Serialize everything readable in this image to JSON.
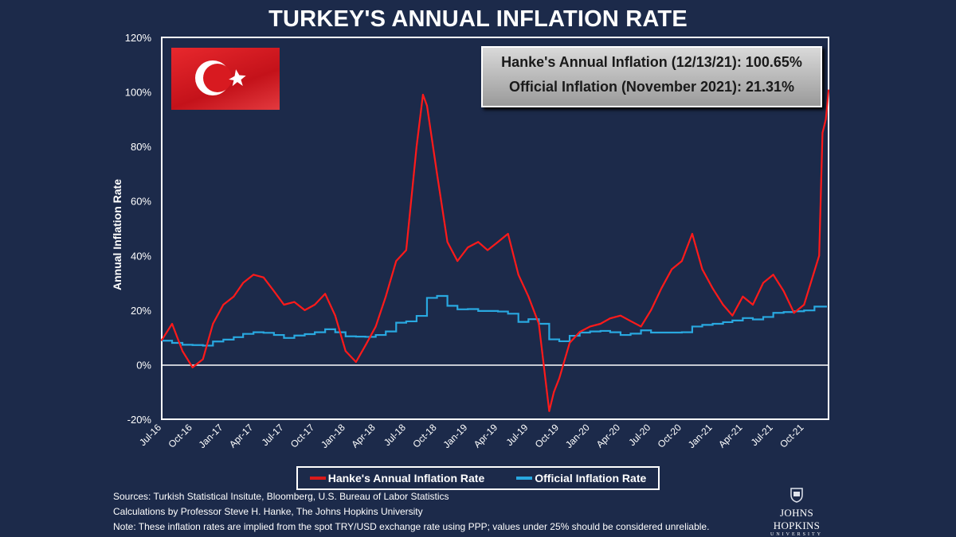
{
  "chart_data": {
    "type": "line",
    "title": "TURKEY'S ANNUAL INFLATION RATE",
    "xlabel": "",
    "ylabel": "Annual Inflation Rate",
    "ylim": [
      -20,
      120
    ],
    "xlim": [
      "2016-07-01",
      "2021-12-13"
    ],
    "y_ticks": [
      "-20%",
      "0%",
      "20%",
      "40%",
      "60%",
      "80%",
      "100%",
      "120%"
    ],
    "y_tick_values": [
      -20,
      0,
      20,
      40,
      60,
      80,
      100,
      120
    ],
    "x_ticks": [
      "Jul-16",
      "Oct-16",
      "Jan-17",
      "Apr-17",
      "Jul-17",
      "Oct-17",
      "Jan-18",
      "Apr-18",
      "Jul-18",
      "Oct-18",
      "Jan-19",
      "Apr-19",
      "Jul-19",
      "Oct-19",
      "Jan-20",
      "Apr-20",
      "Jul-20",
      "Oct-20",
      "Jan-21",
      "Apr-21",
      "Jul-21",
      "Oct-21"
    ],
    "x_tick_dates": [
      "2016-07-01",
      "2016-10-01",
      "2017-01-01",
      "2017-04-01",
      "2017-07-01",
      "2017-10-01",
      "2018-01-01",
      "2018-04-01",
      "2018-07-01",
      "2018-10-01",
      "2019-01-01",
      "2019-04-01",
      "2019-07-01",
      "2019-10-01",
      "2020-01-01",
      "2020-04-01",
      "2020-07-01",
      "2020-10-01",
      "2021-01-01",
      "2021-04-01",
      "2021-07-01",
      "2021-10-01"
    ],
    "grid": false,
    "legend_placement": "bottom",
    "series": [
      {
        "name": "Hanke's Annual Inflation Rate",
        "color": "#ff1a1a",
        "x": [
          "2016-07-01",
          "2016-08-01",
          "2016-09-01",
          "2016-10-01",
          "2016-11-01",
          "2016-12-01",
          "2017-01-01",
          "2017-02-01",
          "2017-03-01",
          "2017-04-01",
          "2017-05-01",
          "2017-06-01",
          "2017-07-01",
          "2017-08-01",
          "2017-09-01",
          "2017-10-01",
          "2017-11-01",
          "2017-12-01",
          "2018-01-01",
          "2018-02-01",
          "2018-03-01",
          "2018-04-01",
          "2018-05-01",
          "2018-06-01",
          "2018-07-01",
          "2018-08-01",
          "2018-08-20",
          "2018-09-01",
          "2018-10-01",
          "2018-11-01",
          "2018-12-01",
          "2019-01-01",
          "2019-02-01",
          "2019-03-01",
          "2019-04-01",
          "2019-05-01",
          "2019-06-01",
          "2019-07-01",
          "2019-08-01",
          "2019-09-01",
          "2019-09-15",
          "2019-10-01",
          "2019-11-01",
          "2019-12-01",
          "2020-01-01",
          "2020-02-01",
          "2020-03-01",
          "2020-04-01",
          "2020-05-01",
          "2020-06-01",
          "2020-07-01",
          "2020-08-01",
          "2020-09-01",
          "2020-10-01",
          "2020-11-01",
          "2020-12-01",
          "2021-01-01",
          "2021-02-01",
          "2021-03-01",
          "2021-04-01",
          "2021-05-01",
          "2021-06-01",
          "2021-07-01",
          "2021-08-01",
          "2021-09-01",
          "2021-10-01",
          "2021-11-15",
          "2021-11-25",
          "2021-12-05",
          "2021-12-13"
        ],
        "values": [
          9,
          15,
          5,
          -1,
          2,
          15,
          22,
          25,
          30,
          33,
          32,
          27,
          22,
          23,
          20,
          22,
          26,
          18,
          5,
          1,
          7,
          14,
          25,
          38,
          42,
          80,
          99,
          95,
          70,
          45,
          38,
          43,
          45,
          42,
          45,
          48,
          33,
          25,
          15,
          -17,
          -10,
          -5,
          8,
          12,
          14,
          15,
          17,
          18,
          16,
          14,
          20,
          28,
          35,
          38,
          48,
          35,
          28,
          22,
          18,
          25,
          22,
          30,
          33,
          27,
          19,
          22,
          40,
          85,
          90,
          100.65
        ]
      },
      {
        "name": "Official Inflation Rate",
        "color": "#29a8e0",
        "x": [
          "2016-07-01",
          "2016-08-01",
          "2016-09-01",
          "2016-10-01",
          "2016-11-01",
          "2016-12-01",
          "2017-01-01",
          "2017-02-01",
          "2017-03-01",
          "2017-04-01",
          "2017-05-01",
          "2017-06-01",
          "2017-07-01",
          "2017-08-01",
          "2017-09-01",
          "2017-10-01",
          "2017-11-01",
          "2017-12-01",
          "2018-01-01",
          "2018-02-01",
          "2018-03-01",
          "2018-04-01",
          "2018-05-01",
          "2018-06-01",
          "2018-07-01",
          "2018-08-01",
          "2018-09-01",
          "2018-10-01",
          "2018-11-01",
          "2018-12-01",
          "2019-01-01",
          "2019-02-01",
          "2019-03-01",
          "2019-04-01",
          "2019-05-01",
          "2019-06-01",
          "2019-07-01",
          "2019-08-01",
          "2019-09-01",
          "2019-10-01",
          "2019-11-01",
          "2019-12-01",
          "2020-01-01",
          "2020-02-01",
          "2020-03-01",
          "2020-04-01",
          "2020-05-01",
          "2020-06-01",
          "2020-07-01",
          "2020-08-01",
          "2020-09-01",
          "2020-10-01",
          "2020-11-01",
          "2020-12-01",
          "2021-01-01",
          "2021-02-01",
          "2021-03-01",
          "2021-04-01",
          "2021-05-01",
          "2021-06-01",
          "2021-07-01",
          "2021-08-01",
          "2021-09-01",
          "2021-10-01",
          "2021-11-01"
        ],
        "values": [
          8.8,
          8.0,
          7.3,
          7.2,
          7.0,
          8.5,
          9.2,
          10.1,
          11.3,
          11.9,
          11.7,
          10.9,
          9.8,
          10.7,
          11.2,
          11.9,
          13.0,
          11.9,
          10.4,
          10.3,
          10.2,
          10.9,
          12.2,
          15.4,
          15.9,
          17.9,
          24.5,
          25.2,
          21.6,
          20.3,
          20.4,
          19.7,
          19.7,
          19.5,
          18.7,
          15.7,
          16.7,
          15.0,
          9.3,
          8.6,
          10.6,
          11.8,
          12.2,
          12.4,
          11.9,
          10.9,
          11.4,
          12.6,
          11.8,
          11.8,
          11.8,
          11.9,
          14.0,
          14.6,
          15.0,
          15.6,
          16.2,
          17.1,
          16.6,
          17.5,
          19.0,
          19.3,
          19.6,
          19.9,
          21.3
        ]
      }
    ]
  },
  "infobox": {
    "line1": "Hanke's Annual Inflation (12/13/21): 100.65%",
    "line2": "Official Inflation (November 2021): 21.31%"
  },
  "flag": {
    "country": "Turkey",
    "colors": [
      "#e30a17",
      "#ffffff"
    ]
  },
  "notes": {
    "sources": "Sources: Turkish Statistical Insitute, Bloomberg, U.S. Bureau of Labor Statistics",
    "calculations": "Calculations by Professor Steve H. Hanke, The Johns Hopkins University",
    "note": "Note: These inflation rates are implied from the spot TRY/USD exchange rate using PPP; values under 25% should be considered unreliable."
  },
  "logo": {
    "name": "JOHNS HOPKINS",
    "sub": "UNIVERSITY"
  }
}
